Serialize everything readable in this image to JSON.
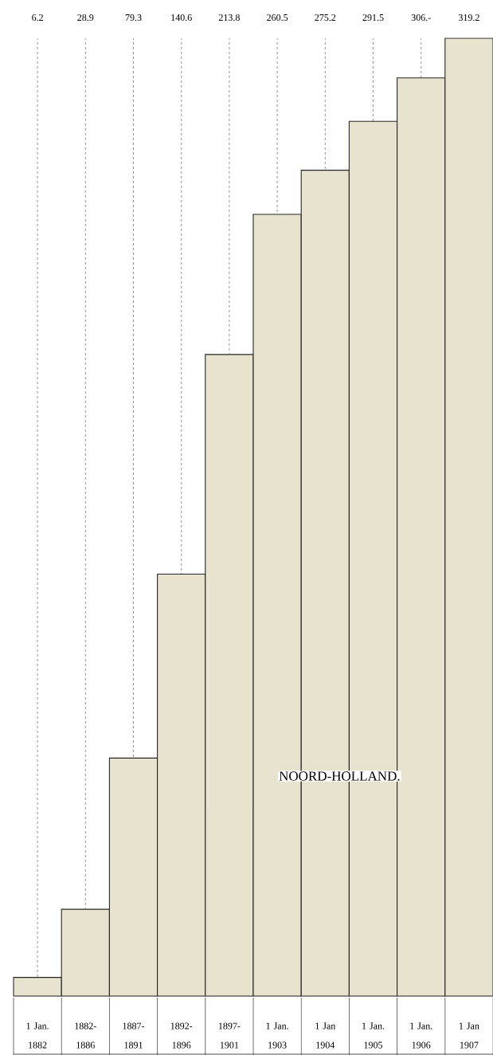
{
  "chart_data": {
    "type": "bar",
    "title": "NOORD-HOLLAND.",
    "categories": [
      "1 Jan. 1882",
      "1882- 1886",
      "1887- 1891",
      "1892- 1896",
      "1897- 1901",
      "1 Jan. 1903",
      "1 Jan 1904",
      "1 Jan. 1905",
      "1 Jan. 1906",
      "1 Jan 1907"
    ],
    "values": [
      6.2,
      28.9,
      79.3,
      140.6,
      213.8,
      260.5,
      275.2,
      291.5,
      306,
      319.2
    ],
    "value_labels": [
      "6.2",
      "28.9",
      "79.3",
      "140.6",
      "213.8",
      "260.5",
      "275.2",
      "291.5",
      "306.-",
      "319.2"
    ],
    "color": "#e8e3cf",
    "grid": "x"
  }
}
